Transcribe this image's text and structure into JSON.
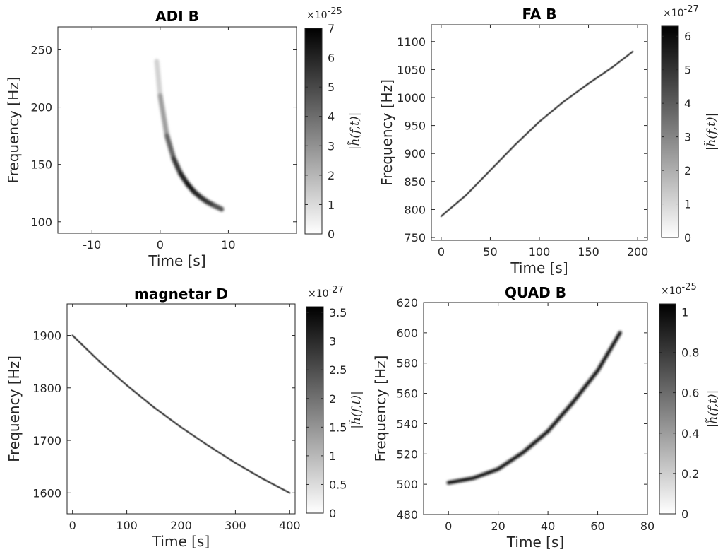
{
  "chart_data": [
    {
      "type": "heatmap",
      "title": "ADI B",
      "xlabel": "Time [s]",
      "ylabel": "Frequency [Hz]",
      "xlim": [
        -15,
        20
      ],
      "ylim": [
        90,
        270
      ],
      "xticks": [
        "-10",
        "0",
        "10"
      ],
      "xtick_values": [
        -10,
        0,
        10
      ],
      "yticks": [
        "100",
        "150",
        "200",
        "250"
      ],
      "ytick_values": [
        100,
        150,
        200,
        250
      ],
      "colorbar": {
        "label": "|h̃(f,t)|",
        "exponent": "×10",
        "exponent_power": "-25",
        "range": [
          0,
          7
        ],
        "ticks": [
          "0",
          "1",
          "2",
          "3",
          "4",
          "5",
          "6",
          "7"
        ],
        "tick_values": [
          0,
          1,
          2,
          3,
          4,
          5,
          6,
          7
        ],
        "colormap": "gray-reversed"
      },
      "track": {
        "x": [
          -0.5,
          0,
          1,
          2,
          3,
          4,
          5,
          6,
          7,
          8,
          9
        ],
        "y": [
          240,
          210,
          175,
          155,
          142,
          133,
          126,
          121,
          117,
          114,
          111
        ],
        "intensity": [
          0.1,
          0.25,
          0.5,
          0.7,
          0.85,
          0.9,
          0.9,
          0.85,
          0.8,
          0.75,
          0.6
        ]
      }
    },
    {
      "type": "heatmap",
      "title": "FA B",
      "xlabel": "Time [s]",
      "ylabel": "Frequency [Hz]",
      "xlim": [
        -10,
        210
      ],
      "ylim": [
        745,
        1130
      ],
      "xticks": [
        "0",
        "50",
        "100",
        "150",
        "200"
      ],
      "xtick_values": [
        0,
        50,
        100,
        150,
        200
      ],
      "yticks": [
        "750",
        "800",
        "850",
        "900",
        "950",
        "1000",
        "1050",
        "1100"
      ],
      "ytick_values": [
        750,
        800,
        850,
        900,
        950,
        1000,
        1050,
        1100
      ],
      "colorbar": {
        "label": "|h̃(f,t)|",
        "exponent": "×10",
        "exponent_power": "-27",
        "range": [
          0,
          6.3
        ],
        "ticks": [
          "0",
          "1",
          "2",
          "3",
          "4",
          "5",
          "6"
        ],
        "tick_values": [
          0,
          1,
          2,
          3,
          4,
          5,
          6
        ],
        "colormap": "gray-reversed"
      },
      "track": {
        "x": [
          0,
          25,
          50,
          75,
          100,
          125,
          150,
          175,
          195
        ],
        "y": [
          788,
          825,
          870,
          915,
          957,
          993,
          1025,
          1055,
          1082
        ],
        "intensity": [
          0.8,
          0.8,
          0.8,
          0.8,
          0.8,
          0.8,
          0.8,
          0.8,
          0.8
        ]
      }
    },
    {
      "type": "heatmap",
      "title": "magnetar D",
      "xlabel": "Time [s]",
      "ylabel": "Frequency [Hz]",
      "xlim": [
        -10,
        410
      ],
      "ylim": [
        1560,
        1960
      ],
      "xticks": [
        "0",
        "100",
        "200",
        "300",
        "400"
      ],
      "xtick_values": [
        0,
        100,
        200,
        300,
        400
      ],
      "yticks": [
        "1600",
        "1700",
        "1800",
        "1900"
      ],
      "ytick_values": [
        1600,
        1700,
        1800,
        1900
      ],
      "colorbar": {
        "label": "|h̃(f,t)|",
        "exponent": "×10",
        "exponent_power": "-27",
        "range": [
          0,
          3.6
        ],
        "ticks": [
          "0",
          "0.5",
          "1",
          "1.5",
          "2",
          "2.5",
          "3",
          "3.5"
        ],
        "tick_values": [
          0,
          0.5,
          1,
          1.5,
          2,
          2.5,
          3,
          3.5
        ],
        "colormap": "gray-reversed"
      },
      "track": {
        "x": [
          0,
          50,
          100,
          150,
          200,
          250,
          300,
          350,
          400
        ],
        "y": [
          1900,
          1850,
          1805,
          1763,
          1725,
          1690,
          1657,
          1627,
          1600
        ],
        "intensity": [
          0.8,
          0.8,
          0.8,
          0.8,
          0.8,
          0.8,
          0.8,
          0.8,
          0.8
        ]
      }
    },
    {
      "type": "heatmap",
      "title": "QUAD B",
      "xlabel": "Time [s]",
      "ylabel": "Frequency [Hz]",
      "xlim": [
        -10,
        80
      ],
      "ylim": [
        480,
        620
      ],
      "xticks": [
        "0",
        "20",
        "40",
        "60",
        "80"
      ],
      "xtick_values": [
        0,
        20,
        40,
        60,
        80
      ],
      "yticks": [
        "480",
        "500",
        "520",
        "540",
        "560",
        "580",
        "600",
        "620"
      ],
      "ytick_values": [
        480,
        500,
        520,
        540,
        560,
        580,
        600,
        620
      ],
      "colorbar": {
        "label": "|h̃(f,t)|",
        "exponent": "×10",
        "exponent_power": "-25",
        "range": [
          0,
          1.04
        ],
        "ticks": [
          "0",
          "0.2",
          "0.4",
          "0.6",
          "0.8",
          "1"
        ],
        "tick_values": [
          0,
          0.2,
          0.4,
          0.6,
          0.8,
          1
        ],
        "colormap": "gray-reversed"
      },
      "track": {
        "x": [
          0,
          10,
          20,
          30,
          40,
          50,
          60,
          69
        ],
        "y": [
          501,
          504,
          510,
          521,
          535,
          554,
          575,
          600
        ],
        "intensity": [
          0.95,
          0.95,
          0.95,
          0.95,
          0.95,
          0.95,
          0.95,
          0.95
        ]
      }
    }
  ]
}
